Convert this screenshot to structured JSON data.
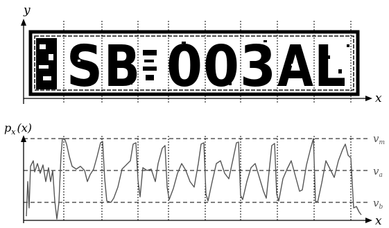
{
  "top_panel": {
    "axis_y_label": "y",
    "axis_x_label": "x",
    "plate_text": "SB 003AL",
    "plate_characters": [
      "S",
      "B",
      "0",
      "0",
      "3",
      "A",
      "L"
    ]
  },
  "bottom_panel": {
    "axis_y_label": "p",
    "axis_y_label_sub": "x",
    "axis_y_label_arg": "(x)",
    "axis_x_label": "x",
    "levels": [
      {
        "name": "v",
        "sub": "m"
      },
      {
        "name": "v",
        "sub": "a"
      },
      {
        "name": "v",
        "sub": "b"
      }
    ]
  },
  "colors": {
    "ink": "#000000",
    "curve": "#555555",
    "level_label": "#555555"
  }
}
